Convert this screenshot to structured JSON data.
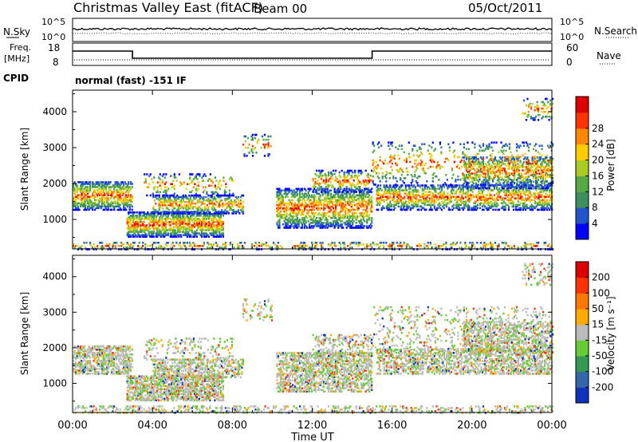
{
  "header": {
    "title": "Christmas Valley East (fitACF)",
    "beam": "Beam 00",
    "date": "05/Oct/2011"
  },
  "panels": {
    "nsky": {
      "label": "N.Sky",
      "right_label": "N.Search",
      "ticks": [
        "10^5",
        "10^0"
      ]
    },
    "freq": {
      "label_top": "Freq.",
      "label_bottom": "[MHz]",
      "right_label": "Nave",
      "ticks_left": [
        "18",
        "8"
      ],
      "ticks_right": [
        "60",
        "0"
      ]
    },
    "cpid": {
      "label": "CPID",
      "value": "normal (fast) -151 IF"
    }
  },
  "chart_data": [
    {
      "type": "heatmap",
      "name": "Power",
      "ylabel": "Slant Range [km]",
      "ylim": [
        180,
        4600
      ],
      "yticks": [
        1000,
        2000,
        3000,
        4000
      ],
      "xlim": [
        0,
        24
      ],
      "colorbar": {
        "label": "Power [dB]",
        "ticks": [
          4,
          8,
          12,
          16,
          20,
          24,
          28
        ],
        "colors": [
          "#0000ff",
          "#2255cc",
          "#3f8f5e",
          "#55aa44",
          "#aacc22",
          "#ffcc00",
          "#ff8800",
          "#ff3300",
          "#dd0000"
        ]
      }
    },
    {
      "type": "heatmap",
      "name": "Velocity",
      "ylabel": "Slant Range [km]",
      "ylim": [
        180,
        4600
      ],
      "yticks": [
        1000,
        2000,
        3000,
        4000
      ],
      "xlim": [
        0,
        24
      ],
      "colorbar": {
        "label": "Velocity [m s⁻¹]",
        "ticks": [
          200,
          100,
          50,
          15,
          -15,
          -50,
          -100,
          -200
        ],
        "colors": [
          "#1133bb",
          "#3366aa",
          "#339955",
          "#66cc33",
          "#bbbbbb",
          "#ffaa00",
          "#ff7700",
          "#ff3300",
          "#dd0000"
        ]
      }
    }
  ],
  "xaxis": {
    "label": "Time UT",
    "ticks": [
      "00:00",
      "04:00",
      "08:00",
      "12:00",
      "16:00",
      "20:00",
      "00:00"
    ]
  },
  "freq_series": {
    "x": [
      0,
      3,
      3,
      15,
      15,
      24
    ],
    "y": [
      15,
      15,
      10.5,
      10.5,
      15,
      15
    ]
  }
}
